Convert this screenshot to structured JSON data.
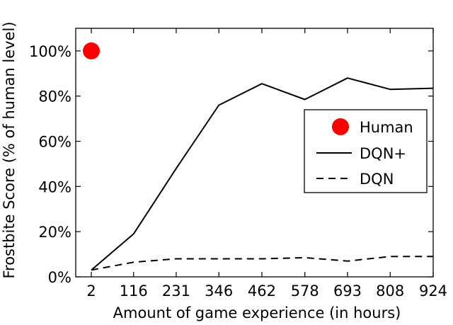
{
  "chart_data": {
    "type": "line",
    "xlabel": "Amount of game experience (in hours)",
    "ylabel": "Frostbite Score (% of human level)",
    "x_ticks": [
      "2",
      "116",
      "231",
      "346",
      "462",
      "578",
      "693",
      "808",
      "924"
    ],
    "y_ticks": [
      "0%",
      "20%",
      "40%",
      "60%",
      "80%",
      "100%"
    ],
    "xlim": [
      -40,
      924
    ],
    "ylim": [
      0,
      110
    ],
    "x": [
      2,
      116,
      231,
      346,
      462,
      578,
      693,
      808,
      924
    ],
    "series": [
      {
        "name": "DQN+",
        "style": "solid",
        "color": "#000000",
        "values": [
          3,
          19,
          48,
          76,
          85.5,
          78.5,
          88,
          83,
          83.5
        ]
      },
      {
        "name": "DQN",
        "style": "dashed",
        "color": "#000000",
        "values": [
          3,
          6.5,
          8,
          8,
          8,
          8.5,
          7,
          9,
          9
        ]
      }
    ],
    "markers": [
      {
        "name": "Human",
        "x": 2,
        "y": 100,
        "color": "#ff0000"
      }
    ],
    "legend": {
      "placement": "center-right",
      "entries": [
        "Human",
        "DQN+",
        "DQN"
      ]
    },
    "grid": false
  }
}
